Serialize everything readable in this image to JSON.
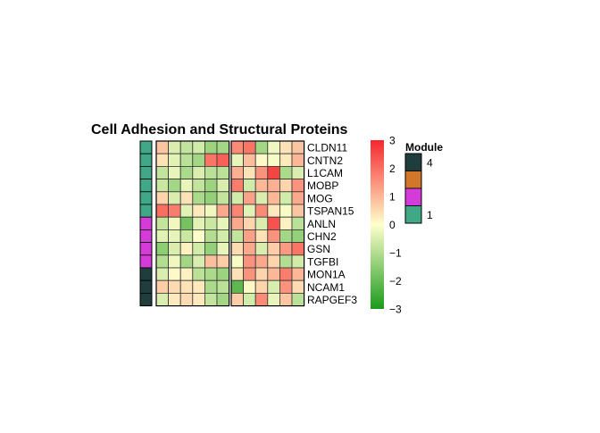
{
  "chart_data": {
    "type": "heatmap",
    "title": "Cell Adhesion and Structural Proteins",
    "rows": [
      "CLDN11",
      "CNTN2",
      "L1CAM",
      "MOBP",
      "MOG",
      "TSPAN15",
      "ANLN",
      "CHN2",
      "GSN",
      "TGFBI",
      "MON1A",
      "NCAM1",
      "RAPGEF3"
    ],
    "row_modules": [
      1,
      1,
      1,
      1,
      1,
      1,
      2,
      2,
      2,
      2,
      4,
      4,
      4
    ],
    "column_groups": [
      6,
      6
    ],
    "values": [
      [
        0.8,
        -0.5,
        -0.8,
        -0.6,
        -1.3,
        -1.2,
        1.6,
        1.9,
        -1.2,
        -0.2,
        0.4,
        0.8
      ],
      [
        0.4,
        -0.4,
        -0.9,
        -1.2,
        1.9,
        2.2,
        -0.3,
        0.9,
        0.1,
        -0.1,
        0.3,
        1.0
      ],
      [
        -0.8,
        -0.3,
        -1.1,
        -0.5,
        -0.9,
        -0.9,
        1.1,
        0.4,
        1.5,
        2.6,
        -1.1,
        -0.5
      ],
      [
        -0.7,
        -1.2,
        -0.3,
        -0.8,
        -1.3,
        -0.5,
        1.8,
        -0.6,
        1.0,
        1.1,
        0.6,
        1.5
      ],
      [
        0.6,
        -0.5,
        0.4,
        -1.1,
        -1.4,
        -0.8,
        -0.6,
        1.3,
        -0.5,
        1.0,
        -0.6,
        1.2
      ],
      [
        2.0,
        1.8,
        -0.4,
        0.3,
        -0.2,
        1.2,
        1.7,
        -0.4,
        1.6,
        0.3,
        -0.1,
        0.8
      ],
      [
        -0.8,
        -0.2,
        -1.8,
        -0.4,
        -0.7,
        -0.3,
        1.2,
        0.6,
        -0.5,
        2.4,
        0.2,
        -0.9
      ],
      [
        -0.4,
        -0.3,
        -0.7,
        0.0,
        -1.0,
        -0.6,
        -0.8,
        1.3,
        0.4,
        1.5,
        -1.2,
        -1.4
      ],
      [
        -1.5,
        -0.5,
        0.2,
        -0.6,
        -1.4,
        -0.3,
        0.5,
        1.2,
        -0.5,
        0.7,
        1.4,
        1.9
      ],
      [
        -1.0,
        -0.2,
        -1.2,
        -0.5,
        0.9,
        0.7,
        -0.1,
        1.5,
        1.2,
        0.6,
        -1.0,
        -0.6
      ],
      [
        -0.5,
        0.1,
        0.2,
        -0.9,
        -1.1,
        -1.3,
        0.4,
        1.5,
        0.6,
        1.0,
        1.8,
        1.0
      ],
      [
        0.7,
        0.5,
        0.4,
        0.3,
        -1.1,
        -0.9,
        -2.1,
        0.1,
        0.6,
        -0.5,
        1.5,
        0.5
      ],
      [
        -0.5,
        0.3,
        0.5,
        0.3,
        -0.8,
        -1.2,
        0.7,
        -0.6,
        1.6,
        -0.3,
        0.8,
        -0.9
      ]
    ],
    "color_scale": {
      "min": -3,
      "max": 3,
      "ticks": [
        3,
        2,
        1,
        0,
        -1,
        -2,
        -3
      ],
      "low": "#1a9a1a",
      "mid": "#ffffcc",
      "high": "#f5272d"
    },
    "module_legend": {
      "title": "Module",
      "labels": [
        "4",
        "1"
      ],
      "colors": {
        "4": "#1f3d3c",
        "3": "#d2762b",
        "2": "#d43bd8",
        "1": "#3fa886"
      },
      "order": [
        4,
        3,
        2,
        1
      ]
    }
  }
}
